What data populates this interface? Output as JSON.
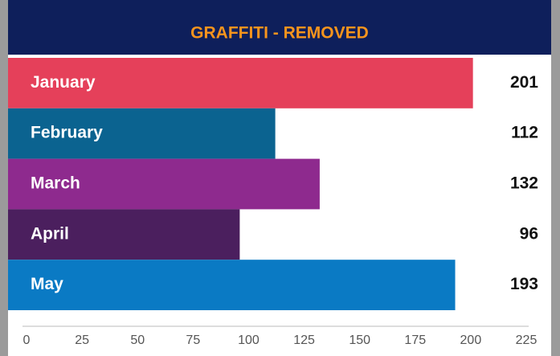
{
  "chart_data": {
    "type": "bar",
    "orientation": "horizontal",
    "title": "GRAFFITI - REMOVED",
    "categories": [
      "January",
      "February",
      "March",
      "April",
      "May"
    ],
    "values": [
      201,
      112,
      132,
      96,
      193
    ],
    "colors": [
      "#e5405a",
      "#0b6390",
      "#8e2a8e",
      "#4b1f5e",
      "#0a7ac4"
    ],
    "header_color": "#0e1f5b",
    "title_color": "#f7941d",
    "xlim": [
      0,
      225
    ],
    "xticks": [
      0,
      25,
      50,
      75,
      100,
      125,
      150,
      175,
      200,
      225
    ]
  }
}
